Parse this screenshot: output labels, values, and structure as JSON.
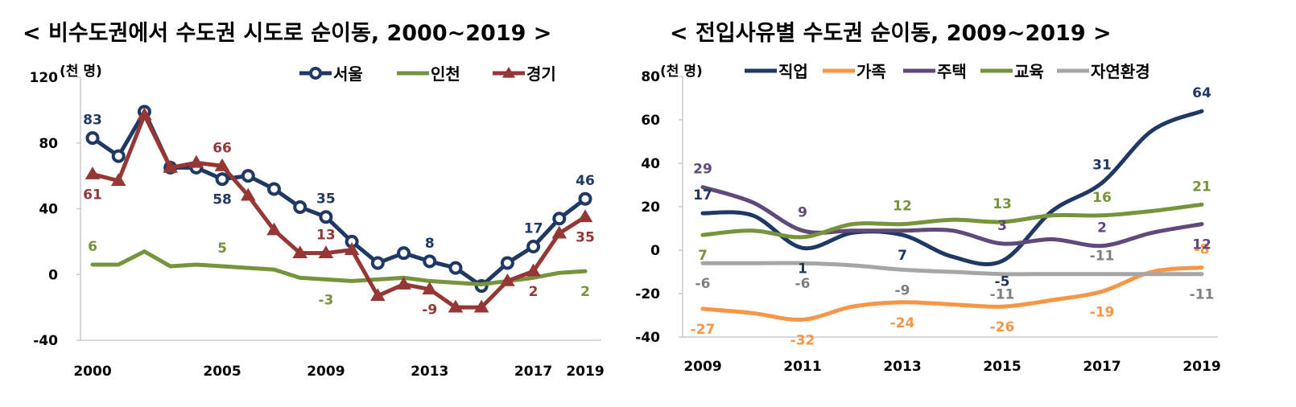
{
  "chart_data": [
    {
      "type": "line",
      "title": "< 비수도권에서 수도권 시도로 순이동, 2000~2019 >",
      "unit_label": "(천 명)",
      "x": [
        2000,
        2001,
        2002,
        2003,
        2004,
        2005,
        2006,
        2007,
        2008,
        2009,
        2010,
        2011,
        2012,
        2013,
        2014,
        2015,
        2016,
        2017,
        2018,
        2019
      ],
      "x_tick_labels": [
        "2000",
        "2005",
        "2009",
        "2013",
        "2017",
        "2019"
      ],
      "ylim": [
        -40,
        120
      ],
      "y_ticks": [
        "-40",
        "0",
        "40",
        "80",
        "120"
      ],
      "legend_position": "top",
      "series": [
        {
          "name": "서울",
          "color": "#1f3864",
          "marker": "circle",
          "values": [
            83,
            72,
            99,
            65,
            65,
            58,
            60,
            52,
            41,
            35,
            20,
            7,
            13,
            8,
            4,
            -7,
            7,
            17,
            34,
            46
          ]
        },
        {
          "name": "인천",
          "color": "#77933c",
          "marker": "none",
          "values": [
            6,
            6,
            14,
            5,
            6,
            5,
            4,
            3,
            -2,
            -3,
            -4,
            -3,
            -2,
            -4,
            -5,
            -6,
            -4,
            -2,
            1,
            2
          ]
        },
        {
          "name": "경기",
          "color": "#953735",
          "marker": "triangle",
          "values": [
            61,
            57,
            97,
            65,
            68,
            66,
            48,
            27,
            13,
            13,
            15,
            -13,
            -6,
            -9,
            -20,
            -20,
            -4,
            2,
            25,
            35
          ]
        }
      ],
      "annotations": [
        {
          "text": "83",
          "x": 2000,
          "y": 83,
          "series": "서울",
          "pos": "above"
        },
        {
          "text": "58",
          "x": 2005,
          "y": 58,
          "series": "서울",
          "pos": "below"
        },
        {
          "text": "35",
          "x": 2009,
          "y": 35,
          "series": "서울",
          "pos": "above"
        },
        {
          "text": "8",
          "x": 2013,
          "y": 8,
          "series": "서울",
          "pos": "above"
        },
        {
          "text": "17",
          "x": 2017,
          "y": 17,
          "series": "서울",
          "pos": "above"
        },
        {
          "text": "46",
          "x": 2019,
          "y": 46,
          "series": "서울",
          "pos": "above"
        },
        {
          "text": "6",
          "x": 2000,
          "y": 6,
          "series": "인천",
          "pos": "above"
        },
        {
          "text": "5",
          "x": 2005,
          "y": 5,
          "series": "인천",
          "pos": "above"
        },
        {
          "text": "-3",
          "x": 2009,
          "y": -3,
          "series": "인천",
          "pos": "below"
        },
        {
          "text": "2",
          "x": 2019,
          "y": 2,
          "series": "인천",
          "pos": "below"
        },
        {
          "text": "61",
          "x": 2000,
          "y": 61,
          "series": "경기",
          "pos": "below"
        },
        {
          "text": "66",
          "x": 2005,
          "y": 66,
          "series": "경기",
          "pos": "above"
        },
        {
          "text": "13",
          "x": 2009,
          "y": 13,
          "series": "경기",
          "pos": "above"
        },
        {
          "text": "-9",
          "x": 2013,
          "y": -9,
          "series": "경기",
          "pos": "below"
        },
        {
          "text": "2",
          "x": 2017,
          "y": 2,
          "series": "경기",
          "pos": "below"
        },
        {
          "text": "35",
          "x": 2019,
          "y": 35,
          "series": "경기",
          "pos": "below"
        }
      ]
    },
    {
      "type": "line",
      "title": "< 전입사유별 수도권 순이동, 2009~2019 >",
      "unit_label": "(천 명)",
      "x": [
        2009,
        2010,
        2011,
        2012,
        2013,
        2014,
        2015,
        2016,
        2017,
        2018,
        2019
      ],
      "x_tick_labels": [
        "2009",
        "2011",
        "2013",
        "2015",
        "2017",
        "2019"
      ],
      "ylim": [
        -40,
        80
      ],
      "y_ticks": [
        "-40",
        "-20",
        "0",
        "20",
        "40",
        "60",
        "80"
      ],
      "legend_position": "top",
      "series": [
        {
          "name": "직업",
          "color": "#1f3864",
          "values": [
            17,
            16,
            1,
            8,
            7,
            -3,
            -5,
            18,
            31,
            55,
            64
          ]
        },
        {
          "name": "가족",
          "color": "#f79646",
          "values": [
            -27,
            -29,
            -32,
            -26,
            -24,
            -25,
            -26,
            -23,
            -19,
            -10,
            -8
          ]
        },
        {
          "name": "주택",
          "color": "#604a7b",
          "values": [
            29,
            22,
            9,
            9,
            9,
            9,
            3,
            5,
            2,
            8,
            12
          ]
        },
        {
          "name": "교육",
          "color": "#77933c",
          "values": [
            7,
            9,
            6,
            12,
            12,
            14,
            13,
            16,
            16,
            18,
            21
          ]
        },
        {
          "name": "자연환경",
          "color": "#a6a6a6",
          "values": [
            -6,
            -6,
            -6,
            -7,
            -9,
            -10,
            -11,
            -11,
            -11,
            -11,
            -11
          ]
        }
      ],
      "annotations": [
        {
          "text": "17",
          "x": 2009,
          "y": 17,
          "series": "직업",
          "pos": "above"
        },
        {
          "text": "1",
          "x": 2011,
          "y": 1,
          "series": "직업",
          "pos": "below"
        },
        {
          "text": "7",
          "x": 2013,
          "y": 7,
          "series": "직업",
          "pos": "below"
        },
        {
          "text": "-5",
          "x": 2015,
          "y": -5,
          "series": "직업",
          "pos": "below"
        },
        {
          "text": "31",
          "x": 2017,
          "y": 31,
          "series": "직업",
          "pos": "above"
        },
        {
          "text": "64",
          "x": 2019,
          "y": 64,
          "series": "직업",
          "pos": "above"
        },
        {
          "text": "-27",
          "x": 2009,
          "y": -27,
          "series": "가족",
          "pos": "below"
        },
        {
          "text": "-32",
          "x": 2011,
          "y": -32,
          "series": "가족",
          "pos": "below"
        },
        {
          "text": "-24",
          "x": 2013,
          "y": -24,
          "series": "가족",
          "pos": "below"
        },
        {
          "text": "-26",
          "x": 2015,
          "y": -26,
          "series": "가족",
          "pos": "below"
        },
        {
          "text": "-19",
          "x": 2017,
          "y": -19,
          "series": "가족",
          "pos": "below"
        },
        {
          "text": "-8",
          "x": 2019,
          "y": -8,
          "series": "가족",
          "pos": "above"
        },
        {
          "text": "29",
          "x": 2009,
          "y": 29,
          "series": "주택",
          "pos": "above"
        },
        {
          "text": "9",
          "x": 2011,
          "y": 9,
          "series": "주택",
          "pos": "above"
        },
        {
          "text": "3",
          "x": 2015,
          "y": 3,
          "series": "주택",
          "pos": "above"
        },
        {
          "text": "2",
          "x": 2017,
          "y": 2,
          "series": "주택",
          "pos": "above"
        },
        {
          "text": "12",
          "x": 2019,
          "y": 12,
          "series": "주택",
          "pos": "below"
        },
        {
          "text": "7",
          "x": 2009,
          "y": 7,
          "series": "교육",
          "pos": "below"
        },
        {
          "text": "12",
          "x": 2013,
          "y": 12,
          "series": "교육",
          "pos": "above"
        },
        {
          "text": "13",
          "x": 2015,
          "y": 13,
          "series": "교육",
          "pos": "above"
        },
        {
          "text": "16",
          "x": 2017,
          "y": 16,
          "series": "교육",
          "pos": "above"
        },
        {
          "text": "21",
          "x": 2019,
          "y": 21,
          "series": "교육",
          "pos": "above"
        },
        {
          "text": "-6",
          "x": 2009,
          "y": -6,
          "series": "자연환경",
          "pos": "below"
        },
        {
          "text": "-6",
          "x": 2011,
          "y": -6,
          "series": "자연환경",
          "pos": "below"
        },
        {
          "text": "-9",
          "x": 2013,
          "y": -9,
          "series": "자연환경",
          "pos": "below"
        },
        {
          "text": "-11",
          "x": 2015,
          "y": -11,
          "series": "자연환경",
          "pos": "below"
        },
        {
          "text": "-11",
          "x": 2017,
          "y": -11,
          "series": "자연환경",
          "pos": "above"
        },
        {
          "text": "-11",
          "x": 2019,
          "y": -11,
          "series": "자연환경",
          "pos": "below"
        }
      ]
    }
  ]
}
